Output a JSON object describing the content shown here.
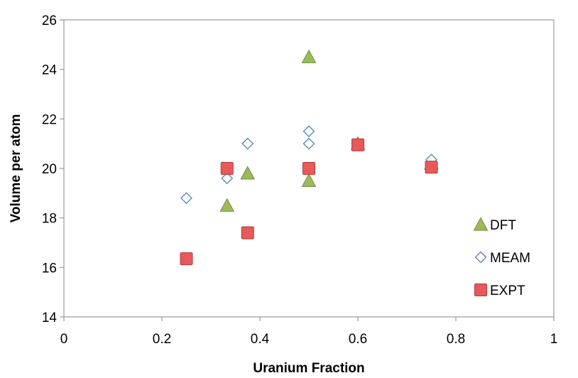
{
  "chart_data": {
    "type": "scatter",
    "title": "",
    "xlabel": "Uranium Fraction",
    "ylabel": "Volume per atom",
    "xlim": [
      0,
      1
    ],
    "ylim": [
      14,
      26
    ],
    "xticks": [
      0,
      0.2,
      0.4,
      0.6,
      0.8,
      1
    ],
    "xtick_labels": [
      "0",
      "0.2",
      "0.4",
      "0.6",
      "0.8",
      "1"
    ],
    "yticks": [
      14,
      16,
      18,
      20,
      22,
      24,
      26
    ],
    "ytick_labels": [
      "14",
      "16",
      "18",
      "20",
      "22",
      "24",
      "26"
    ],
    "grid": false,
    "legend_position": "right",
    "series": [
      {
        "name": "DFT",
        "marker": "triangle",
        "color": "#9BBB59",
        "stroke": "#71893F",
        "points": [
          {
            "x": 0.333,
            "y": 18.5
          },
          {
            "x": 0.375,
            "y": 19.8
          },
          {
            "x": 0.5,
            "y": 24.5
          },
          {
            "x": 0.5,
            "y": 19.5
          },
          {
            "x": 0.6,
            "y": 21.0
          },
          {
            "x": 0.75,
            "y": 20.2
          }
        ]
      },
      {
        "name": "MEAM",
        "marker": "diamond",
        "color": "#FFFFFF",
        "stroke": "#4F81BD",
        "points": [
          {
            "x": 0.25,
            "y": 18.8
          },
          {
            "x": 0.333,
            "y": 19.6
          },
          {
            "x": 0.375,
            "y": 21.0
          },
          {
            "x": 0.5,
            "y": 21.5
          },
          {
            "x": 0.5,
            "y": 21.0
          },
          {
            "x": 0.75,
            "y": 20.35
          }
        ]
      },
      {
        "name": "EXPT",
        "marker": "square",
        "color": "#E8595A",
        "stroke": "#B23A3A",
        "points": [
          {
            "x": 0.25,
            "y": 16.35
          },
          {
            "x": 0.333,
            "y": 20.0
          },
          {
            "x": 0.375,
            "y": 17.4
          },
          {
            "x": 0.5,
            "y": 20.0
          },
          {
            "x": 0.6,
            "y": 20.95
          },
          {
            "x": 0.75,
            "y": 20.05
          }
        ]
      }
    ]
  }
}
